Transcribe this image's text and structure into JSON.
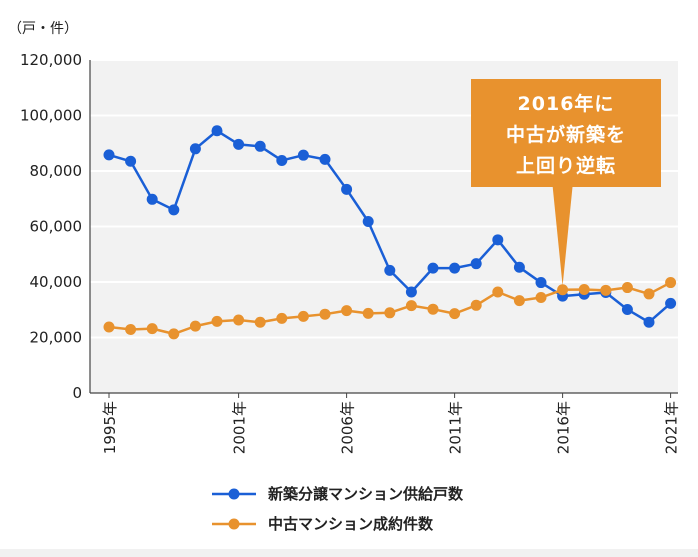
{
  "chart_data": {
    "type": "line",
    "unit_label": "（戸・件）",
    "y_ticks": [
      "0",
      "20,000",
      "40,000",
      "60,000",
      "80,000",
      "100,000",
      "120,000"
    ],
    "ylim": [
      0,
      120000
    ],
    "x": [
      1995,
      1996,
      1997,
      1998,
      1999,
      2000,
      2001,
      2002,
      2003,
      2004,
      2005,
      2006,
      2007,
      2008,
      2009,
      2010,
      2011,
      2012,
      2013,
      2014,
      2015,
      2016,
      2017,
      2018,
      2019,
      2020,
      2021
    ],
    "x_tick_labels": [
      {
        "year": 1995,
        "label": "1995年"
      },
      {
        "year": 2001,
        "label": "2001年"
      },
      {
        "year": 2006,
        "label": "2006年"
      },
      {
        "year": 2011,
        "label": "2011年"
      },
      {
        "year": 2016,
        "label": "2016年"
      },
      {
        "year": 2021,
        "label": "2021年"
      }
    ],
    "series": [
      {
        "name": "新築分譲マンション供給戸数",
        "color": "#1a5fd6",
        "values": [
          85800,
          83500,
          69800,
          66000,
          88000,
          94500,
          89600,
          88900,
          83800,
          85700,
          84200,
          73400,
          61800,
          44200,
          36400,
          45000,
          45000,
          46600,
          55200,
          45300,
          39800,
          34900,
          35600,
          36200,
          30100,
          25500,
          32300
        ]
      },
      {
        "name": "中古マンション成約件数",
        "color": "#e8922e",
        "values": [
          23800,
          22900,
          23200,
          21300,
          24100,
          25800,
          26300,
          25500,
          26900,
          27600,
          28400,
          29700,
          28700,
          28900,
          31500,
          30200,
          28600,
          31600,
          36400,
          33300,
          34400,
          37200,
          37300,
          37000,
          38000,
          35700,
          39800
        ]
      }
    ],
    "annotation": {
      "lines": [
        "2016年に",
        "中古が新築を",
        "上回り逆転"
      ],
      "color": "#e8922e",
      "points_to_year": 2016
    }
  }
}
